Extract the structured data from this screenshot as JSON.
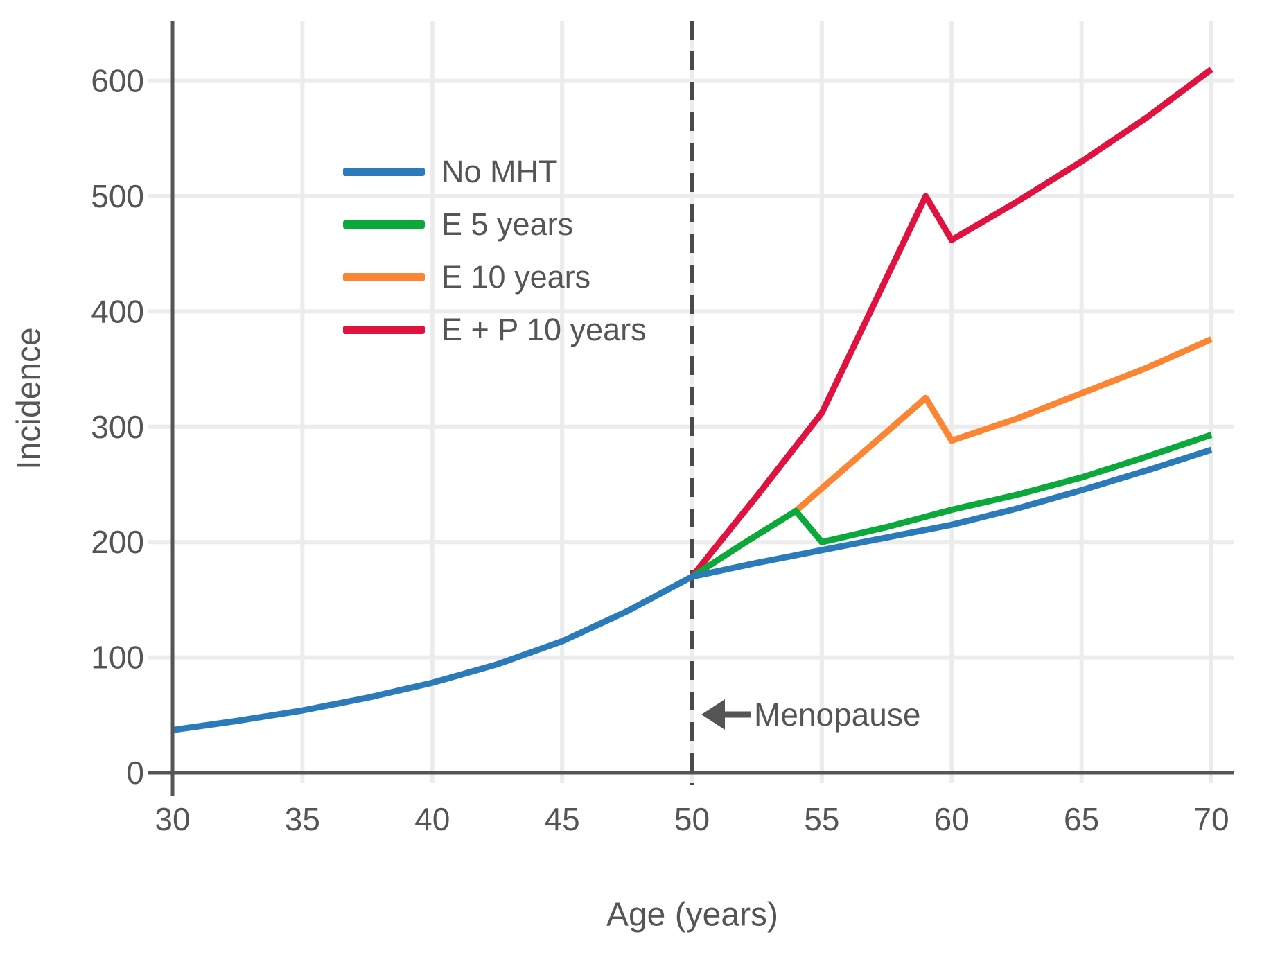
{
  "chart_data": {
    "type": "line",
    "title": "",
    "xlabel": "Age (years)",
    "ylabel": "Incidence",
    "xlim": [
      30,
      70
    ],
    "ylim": [
      0,
      650
    ],
    "x_ticks": [
      30,
      35,
      40,
      45,
      50,
      55,
      60,
      65,
      70
    ],
    "y_ticks": [
      0,
      100,
      200,
      300,
      400,
      500,
      600
    ],
    "grid": true,
    "legend_position": "upper-left-inside",
    "series": [
      {
        "name": "No MHT",
        "color": "#2b7bba",
        "x": [
          30,
          32.5,
          35,
          37.5,
          40,
          42.5,
          45,
          47.5,
          50,
          52.5,
          55,
          57.5,
          60,
          62.5,
          65,
          67.5,
          70
        ],
        "y": [
          37,
          45,
          54,
          65,
          78,
          94,
          114,
          140,
          170,
          182,
          193,
          204,
          215,
          229,
          245,
          262,
          280
        ]
      },
      {
        "name": "E 5 years",
        "color": "#0ba83b",
        "x": [
          50,
          52,
          54,
          55,
          57.5,
          60,
          62.5,
          65,
          67.5,
          70
        ],
        "y": [
          170,
          199,
          227,
          200,
          213,
          228,
          241,
          256,
          274,
          293
        ]
      },
      {
        "name": "E 10 years",
        "color": "#fb8532",
        "x": [
          50,
          52,
          54,
          56.5,
          59,
          60,
          62.5,
          65,
          67.5,
          70
        ],
        "y": [
          170,
          199,
          227,
          276,
          325,
          288,
          307,
          329,
          351,
          376
        ]
      },
      {
        "name": "E + P 10 years",
        "color": "#e01240",
        "x": [
          50,
          52.5,
          55,
          57,
          59,
          60,
          62.5,
          65,
          67.5,
          70
        ],
        "y": [
          170,
          240,
          312,
          406,
          500,
          462,
          495,
          530,
          568,
          610
        ]
      }
    ],
    "annotation": {
      "label": "Menopause",
      "x": 50,
      "arrow": "left",
      "line_style": "dashed",
      "line_color": "#4a4a4a"
    }
  },
  "colors": {
    "text": "#555555",
    "spine": "#555555",
    "gridline": "#ececec",
    "dashed_line": "#4a4a4a",
    "background": "#ffffff"
  }
}
